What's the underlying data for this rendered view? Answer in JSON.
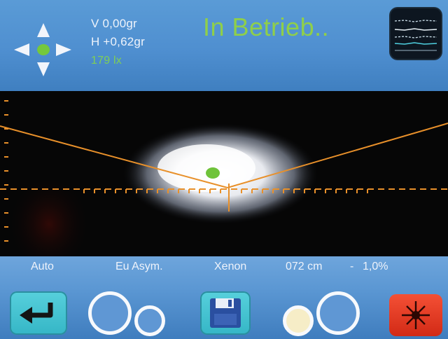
{
  "header": {
    "vertical_readout": "V 0,00gr",
    "horizontal_readout": "H +0,62gr",
    "lux_readout": "179 lx",
    "status": "In Betrieb.."
  },
  "footer": {
    "mode": "Auto",
    "pattern": "Eu Asym.",
    "lamp": "Xenon",
    "distance": "072 cm",
    "separator": "-",
    "tilt": "1,0%"
  },
  "icons": {
    "navigation": "direction-cross-icon",
    "thumbnail": "graph-thumbnail-icon",
    "back": "return-arrow-icon",
    "save": "floppy-disk-icon",
    "laser": "laser-icon",
    "mode_left": "large-small-circles-icon",
    "mode_right": "small-large-circles-icon"
  },
  "colors": {
    "panel_blue": "#4f8fd0",
    "status_green": "#8fcf4a",
    "center_dot": "#75c83c",
    "cutoff_line": "#e8902a",
    "button_teal": "#40bfcd",
    "laser_red": "#e23a20"
  }
}
